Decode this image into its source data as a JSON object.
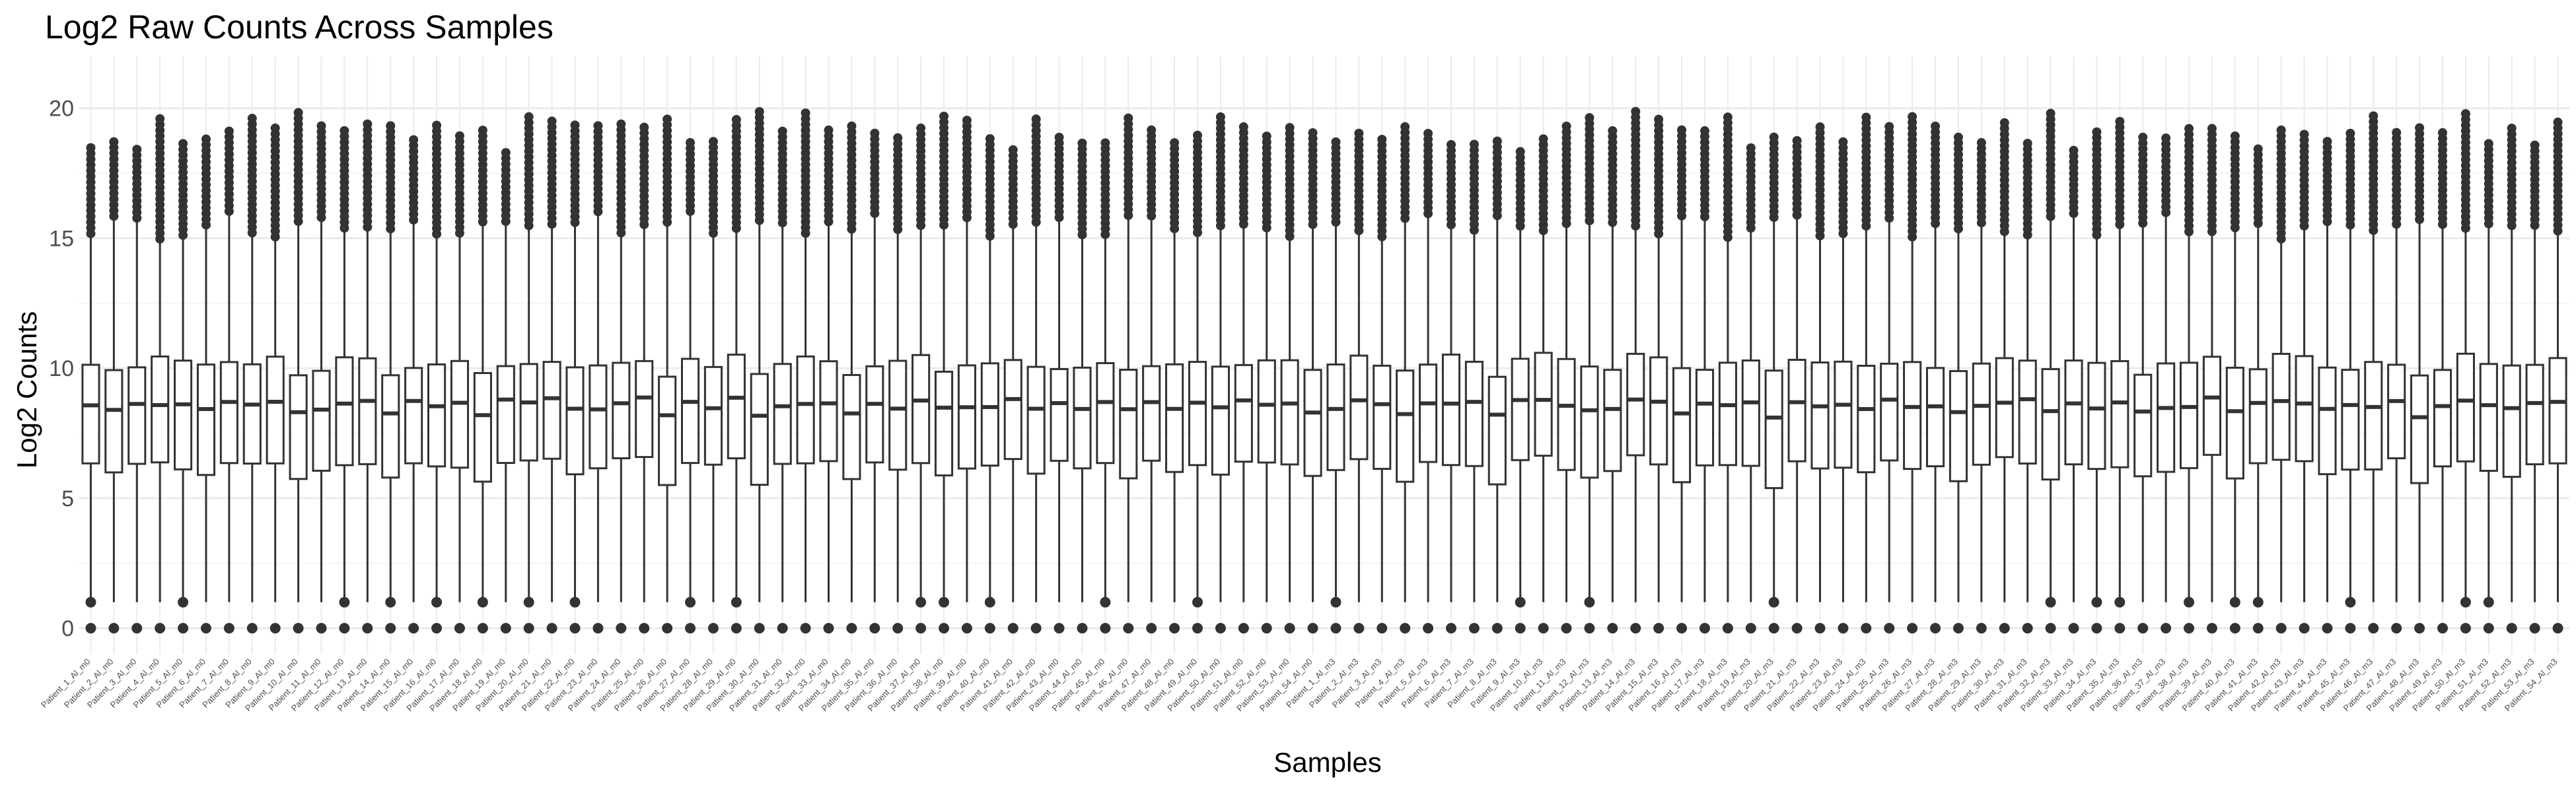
{
  "chart_data": {
    "type": "boxplot",
    "title": "Log2 Raw Counts Across Samples",
    "xlabel": "Samples",
    "ylabel": "Log2 Counts",
    "ylim": [
      -1,
      22
    ],
    "yticks": [
      0,
      5,
      10,
      15,
      20
    ],
    "grid": true,
    "legend": "none",
    "colors": {
      "box_stroke": "#333333",
      "outlier": "#333333",
      "grid_major": "#ebebeb",
      "grid_minor": "#f5f5f5",
      "tick_text": "#4d4d4d"
    },
    "patients": 54,
    "timepoints": [
      "Al_m0",
      "Al_m3"
    ],
    "box_series": [
      {
        "med": 8.7,
        "q1": 6.5,
        "q3": 10.1,
        "whisk_lo": 1.0,
        "whisk_hi": 15.2,
        "max": 19.1,
        "out_lo": [
          0
        ]
      },
      {
        "med": 8.3,
        "q1": 5.9,
        "q3": 9.7,
        "whisk_lo": 1.0,
        "whisk_hi": 15.5,
        "max": 19.3,
        "out_lo": [
          0
        ]
      },
      {
        "med": 8.6,
        "q1": 6.4,
        "q3": 9.9,
        "whisk_lo": 1.0,
        "whisk_hi": 15.6,
        "max": 19.0,
        "out_lo": [
          0,
          1
        ]
      },
      {
        "med": 8.6,
        "q1": 6.5,
        "q3": 10.1,
        "whisk_lo": 1.0,
        "whisk_hi": 15.1,
        "max": 19.3,
        "out_lo": [
          0
        ]
      }
    ],
    "x_labels_note": "Tick labels follow the pattern Patient_N_Al_m0 for N=1..54, then Patient_N_Al_m3 for N=1..54"
  }
}
